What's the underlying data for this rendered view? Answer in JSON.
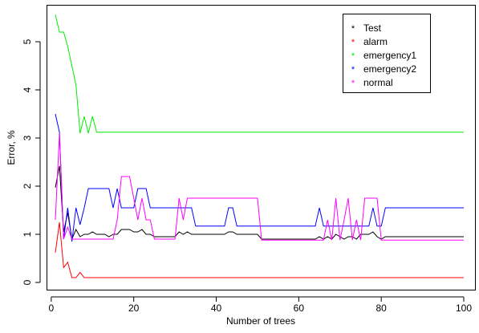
{
  "chart_data": {
    "type": "line",
    "title": "",
    "xlabel": "Number of trees",
    "ylabel": "Error, %",
    "xlim": [
      1,
      100
    ],
    "ylim": [
      0,
      5.6
    ],
    "xticks": [
      0,
      20,
      40,
      60,
      80,
      100
    ],
    "yticks": [
      0,
      1,
      2,
      3,
      4,
      5
    ],
    "grid": false,
    "legend_position": "top-right",
    "x": [
      1,
      2,
      3,
      4,
      5,
      6,
      7,
      8,
      9,
      10,
      11,
      12,
      13,
      14,
      15,
      16,
      17,
      18,
      19,
      20,
      21,
      22,
      23,
      24,
      25,
      26,
      27,
      28,
      29,
      30,
      31,
      32,
      33,
      34,
      35,
      36,
      37,
      38,
      39,
      40,
      41,
      42,
      43,
      44,
      45,
      46,
      47,
      48,
      49,
      50,
      51,
      52,
      53,
      54,
      55,
      56,
      57,
      58,
      59,
      60,
      61,
      62,
      63,
      64,
      65,
      66,
      67,
      68,
      69,
      70,
      71,
      72,
      73,
      74,
      75,
      76,
      77,
      78,
      79,
      80,
      81,
      82,
      83,
      84,
      85,
      86,
      87,
      88,
      89,
      90,
      91,
      92,
      93,
      94,
      95,
      96,
      97,
      98,
      99,
      100
    ],
    "series": [
      {
        "name": "Test",
        "color": "#000000",
        "values": [
          1.97,
          2.42,
          1.05,
          1.45,
          0.9,
          1.1,
          0.95,
          1.0,
          1.0,
          1.05,
          1.0,
          1.0,
          1.0,
          0.95,
          1.0,
          1.0,
          1.1,
          1.1,
          1.1,
          1.05,
          1.05,
          1.1,
          1.0,
          1.0,
          0.95,
          0.95,
          0.95,
          0.95,
          0.95,
          0.95,
          1.05,
          1.0,
          1.05,
          1.0,
          1.0,
          1.0,
          1.0,
          1.0,
          1.0,
          1.0,
          1.0,
          1.0,
          1.05,
          1.05,
          1.0,
          1.0,
          1.0,
          1.0,
          1.0,
          1.0,
          0.9,
          0.9,
          0.9,
          0.9,
          0.9,
          0.9,
          0.9,
          0.9,
          0.9,
          0.9,
          0.9,
          0.9,
          0.9,
          0.9,
          0.95,
          0.9,
          0.95,
          0.9,
          1.0,
          0.95,
          0.9,
          0.95,
          0.95,
          0.9,
          1.0,
          1.0,
          1.0,
          1.05,
          0.95,
          0.9,
          0.95,
          0.95,
          0.95,
          0.95,
          0.95,
          0.95,
          0.95,
          0.95,
          0.95,
          0.95,
          0.95,
          0.95,
          0.95,
          0.95,
          0.95,
          0.95,
          0.95,
          0.95,
          0.95,
          0.95
        ]
      },
      {
        "name": "alarm",
        "color": "#ff0000",
        "values": [
          0.62,
          1.25,
          0.31,
          0.42,
          0.1,
          0.1,
          0.21,
          0.1,
          0.1,
          0.1,
          0.1,
          0.1,
          0.1,
          0.1,
          0.1,
          0.1,
          0.1,
          0.1,
          0.1,
          0.1,
          0.1,
          0.1,
          0.1,
          0.1,
          0.1,
          0.1,
          0.1,
          0.1,
          0.1,
          0.1,
          0.1,
          0.1,
          0.1,
          0.1,
          0.1,
          0.1,
          0.1,
          0.1,
          0.1,
          0.1,
          0.1,
          0.1,
          0.1,
          0.1,
          0.1,
          0.1,
          0.1,
          0.1,
          0.1,
          0.1,
          0.1,
          0.1,
          0.1,
          0.1,
          0.1,
          0.1,
          0.1,
          0.1,
          0.1,
          0.1,
          0.1,
          0.1,
          0.1,
          0.1,
          0.1,
          0.1,
          0.1,
          0.1,
          0.1,
          0.1,
          0.1,
          0.1,
          0.1,
          0.1,
          0.1,
          0.1,
          0.1,
          0.1,
          0.1,
          0.1,
          0.1,
          0.1,
          0.1,
          0.1,
          0.1,
          0.1,
          0.1,
          0.1,
          0.1,
          0.1,
          0.1,
          0.1,
          0.1,
          0.1,
          0.1,
          0.1,
          0.1,
          0.1,
          0.1,
          0.1
        ]
      },
      {
        "name": "emergency1",
        "color": "#00ee00",
        "values": [
          5.56,
          5.2,
          5.2,
          4.9,
          4.5,
          4.1,
          3.1,
          3.45,
          3.1,
          3.45,
          3.12,
          3.12,
          3.12,
          3.12,
          3.12,
          3.12,
          3.12,
          3.12,
          3.12,
          3.12,
          3.12,
          3.12,
          3.12,
          3.12,
          3.12,
          3.12,
          3.12,
          3.12,
          3.12,
          3.12,
          3.12,
          3.12,
          3.12,
          3.12,
          3.12,
          3.12,
          3.12,
          3.12,
          3.12,
          3.12,
          3.12,
          3.12,
          3.12,
          3.12,
          3.12,
          3.12,
          3.12,
          3.12,
          3.12,
          3.12,
          3.12,
          3.12,
          3.12,
          3.12,
          3.12,
          3.12,
          3.12,
          3.12,
          3.12,
          3.12,
          3.12,
          3.12,
          3.12,
          3.12,
          3.12,
          3.12,
          3.12,
          3.12,
          3.12,
          3.12,
          3.12,
          3.12,
          3.12,
          3.12,
          3.12,
          3.12,
          3.12,
          3.12,
          3.12,
          3.12,
          3.12,
          3.12,
          3.12,
          3.12,
          3.12,
          3.12,
          3.12,
          3.12,
          3.12,
          3.12,
          3.12,
          3.12,
          3.12,
          3.12,
          3.12,
          3.12,
          3.12,
          3.12,
          3.12,
          3.12
        ]
      },
      {
        "name": "emergency2",
        "color": "#0000ff",
        "values": [
          3.5,
          3.12,
          0.9,
          1.55,
          0.85,
          1.55,
          1.2,
          1.55,
          1.95,
          1.95,
          1.95,
          1.95,
          1.95,
          1.95,
          1.55,
          1.95,
          1.55,
          1.55,
          1.55,
          1.55,
          1.95,
          1.95,
          1.95,
          1.55,
          1.55,
          1.55,
          1.55,
          1.55,
          1.55,
          1.55,
          1.55,
          1.55,
          1.55,
          1.55,
          1.17,
          1.17,
          1.17,
          1.17,
          1.17,
          1.17,
          1.17,
          1.17,
          1.55,
          1.55,
          1.17,
          1.17,
          1.17,
          1.17,
          1.17,
          1.17,
          1.17,
          1.17,
          1.17,
          1.17,
          1.17,
          1.17,
          1.17,
          1.17,
          1.17,
          1.17,
          1.17,
          1.17,
          1.17,
          1.17,
          1.55,
          1.17,
          1.17,
          1.17,
          1.17,
          1.17,
          1.17,
          1.17,
          1.17,
          1.17,
          1.17,
          1.17,
          1.17,
          1.55,
          1.17,
          1.17,
          1.55,
          1.55,
          1.55,
          1.55,
          1.55,
          1.55,
          1.55,
          1.55,
          1.55,
          1.55,
          1.55,
          1.55,
          1.55,
          1.55,
          1.55,
          1.55,
          1.55,
          1.55,
          1.55,
          1.55
        ]
      },
      {
        "name": "normal",
        "color": "#ff00ff",
        "values": [
          1.3,
          3.1,
          0.9,
          1.15,
          0.9,
          0.9,
          0.9,
          0.9,
          0.9,
          0.9,
          0.9,
          0.9,
          0.9,
          0.9,
          0.9,
          1.3,
          2.2,
          2.2,
          2.2,
          1.75,
          1.3,
          1.75,
          1.3,
          1.3,
          0.9,
          0.9,
          0.9,
          0.9,
          0.9,
          0.9,
          1.75,
          1.3,
          1.75,
          1.75,
          1.75,
          1.75,
          1.75,
          1.75,
          1.75,
          1.75,
          1.75,
          1.75,
          1.75,
          1.75,
          1.75,
          1.75,
          1.75,
          1.75,
          1.75,
          1.75,
          0.88,
          0.88,
          0.88,
          0.88,
          0.88,
          0.88,
          0.88,
          0.88,
          0.88,
          0.88,
          0.88,
          0.88,
          0.88,
          0.88,
          0.88,
          0.88,
          1.3,
          0.88,
          1.75,
          0.88,
          1.3,
          1.75,
          0.88,
          1.3,
          0.88,
          1.75,
          1.75,
          1.75,
          1.75,
          0.88,
          0.88,
          0.88,
          0.88,
          0.88,
          0.88,
          0.88,
          0.88,
          0.88,
          0.88,
          0.88,
          0.88,
          0.88,
          0.88,
          0.88,
          0.88,
          0.88,
          0.88,
          0.88,
          0.88,
          0.88
        ]
      }
    ]
  }
}
